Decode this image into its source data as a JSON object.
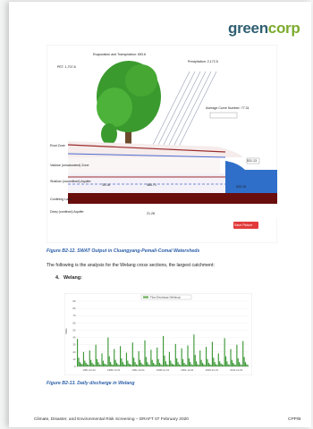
{
  "brand": {
    "logo_part1": "green",
    "logo_part2": "corp"
  },
  "diagram": {
    "pet_label": "PET: 1,707.8",
    "evap_label": "Evaporation and Transpiration: 653.6",
    "precip_label": "Precipitation: 2,172.5",
    "curve_label": "Average Curve Number: 77.31",
    "layer_labels": [
      "Root Zone",
      "Vadose (unsaturated) Zone",
      "Shallow (unconfined) Aquifer",
      "Confining Layer",
      "Deep (confined) Aquifer"
    ],
    "value_labels": [
      "35.16",
      "585.71",
      "633.18",
      "531.13",
      "21.28"
    ],
    "legend_button": "Save Picture"
  },
  "figure_caption_1": "Figure B2-12. SWAT Output in Cluangyang-Pemali-Comal Watersheds",
  "paragraph_1": "The following is the analysis for the Welang cross sections, the largest catchment:",
  "section_number": "4.",
  "section_title": "Welang:",
  "chart_data": {
    "type": "bar",
    "legend": "Flow Discharge (Welang)",
    "ylim": [
      0,
      90
    ],
    "yticks": [
      "0",
      "10",
      "20",
      "30",
      "40",
      "50",
      "60",
      "70",
      "80",
      "90"
    ],
    "xticks": [
      "1981-12-01",
      "1986-12-01",
      "1991-12-01",
      "1996-12-01",
      "2001-12-01",
      "2006-12-01",
      "2011-12-01"
    ],
    "ylabel": "m3/s",
    "values": [
      38,
      12,
      6,
      4,
      3,
      20,
      8,
      5,
      3,
      2,
      22,
      9,
      5,
      3,
      2,
      30,
      10,
      6,
      3,
      2,
      18,
      8,
      4,
      3,
      2,
      40,
      14,
      6,
      3,
      2,
      24,
      9,
      5,
      3,
      2,
      28,
      11,
      6,
      3,
      2,
      19,
      8,
      4,
      3,
      2,
      33,
      12,
      6,
      3,
      2,
      21,
      9,
      5,
      3,
      2,
      36,
      13,
      6,
      3,
      2,
      23,
      9,
      5,
      3,
      2,
      26,
      10,
      5,
      3,
      2,
      42,
      15,
      7,
      3,
      2,
      20,
      8,
      4,
      3,
      2,
      31,
      11,
      6,
      3,
      2,
      25,
      10,
      5,
      3,
      2,
      29,
      11,
      6,
      3,
      2,
      44,
      16,
      7,
      3,
      2,
      22,
      9,
      5,
      3,
      2,
      27,
      10,
      5,
      3,
      2,
      34,
      12,
      6,
      3,
      2,
      18,
      7,
      4,
      3,
      2,
      39,
      14,
      7,
      3,
      2,
      24,
      9,
      5,
      3,
      2,
      30,
      11,
      6,
      3,
      2,
      35,
      13,
      6,
      3,
      2
    ]
  },
  "figure_caption_2": "Figure B2-13. Daily discharge in Welang",
  "footer": {
    "left": "Climate, Disaster, and Environmental Risk Screening – DRAFT 07 February 2020",
    "right": "CPP/B"
  }
}
